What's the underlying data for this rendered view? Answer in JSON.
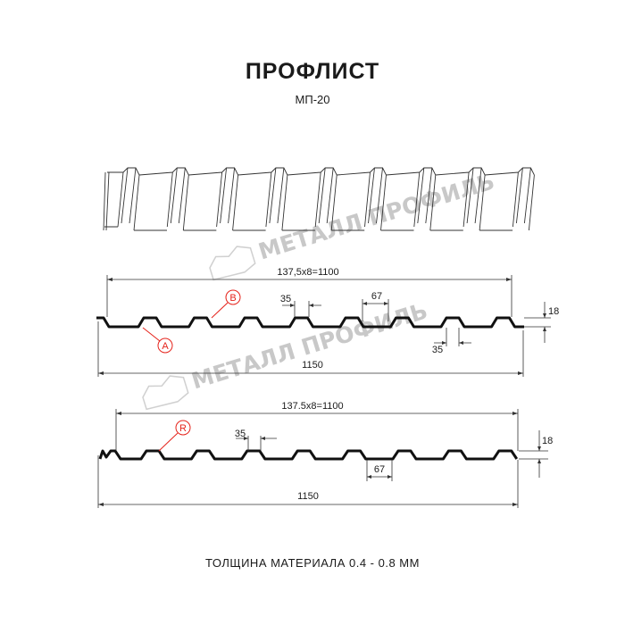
{
  "title": "ПРОФЛИСТ",
  "subtitle": "МП-20",
  "watermark": "МЕТАЛЛ ПРОФИЛЬ",
  "profile_top": {
    "pitch_label": "137,5x8=1100",
    "total_width_label": "1150",
    "rib_top_label": "35",
    "rib_bottom_label": "35",
    "trough_label": "67",
    "height_label": "18",
    "callout_a": "A",
    "callout_b": "B"
  },
  "profile_bottom": {
    "pitch_label": "137.5x8=1100",
    "total_width_label": "1150",
    "rib_top_label": "35",
    "trough_label": "67",
    "height_label": "18",
    "callout_r": "R"
  },
  "footer": "ТОЛЩИНА МАТЕРИАЛА 0.4 - 0.8 ММ",
  "colors": {
    "callout": "#e5231b",
    "profile": "#111111",
    "watermark": "#c8c8c8"
  }
}
